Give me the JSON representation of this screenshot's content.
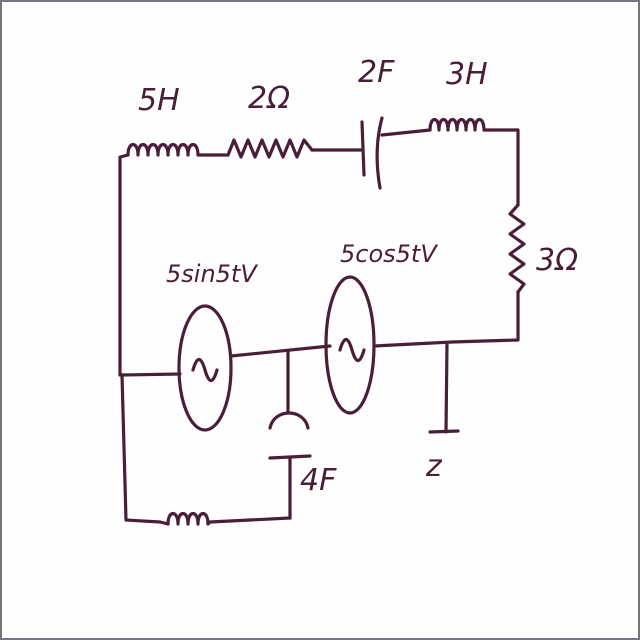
{
  "diagram": {
    "components": [
      {
        "id": "L1",
        "kind": "inductor",
        "label": "5H"
      },
      {
        "id": "R1",
        "kind": "resistor",
        "label": "2Ω"
      },
      {
        "id": "C1",
        "kind": "capacitor",
        "label": "2F"
      },
      {
        "id": "L2",
        "kind": "inductor",
        "label": "3H"
      },
      {
        "id": "R2",
        "kind": "resistor",
        "label": "3Ω"
      },
      {
        "id": "V1",
        "kind": "ac-source",
        "label": "5sin5tV"
      },
      {
        "id": "V2",
        "kind": "ac-source",
        "label": "5cos5tV"
      },
      {
        "id": "C2",
        "kind": "capacitor",
        "label": "4F"
      },
      {
        "id": "L3",
        "kind": "inductor",
        "label": ""
      },
      {
        "id": "Z",
        "kind": "terminal",
        "label": "z"
      }
    ],
    "colors": {
      "ink": "#4a1e38",
      "border": "#7a7480",
      "background": "#fefefe"
    }
  }
}
